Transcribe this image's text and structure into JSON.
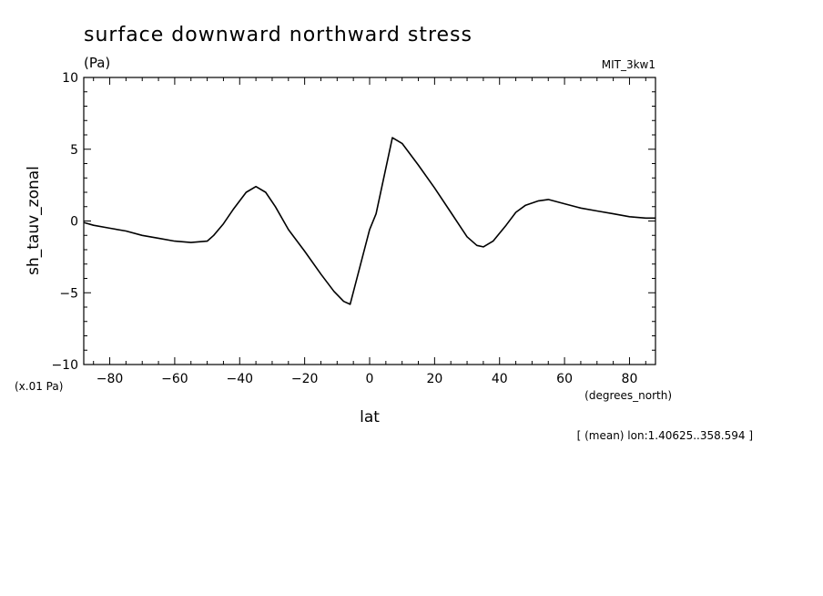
{
  "chart_data": {
    "type": "line",
    "title": "surface downward northward stress",
    "units": "(Pa)",
    "model": "MIT_3kw1",
    "scale_note": "(x.01 Pa)",
    "xlabel": "lat",
    "xunits": "(degrees_north)",
    "ylabel": "sh_tauv_zonal",
    "footnote": "[ (mean) lon:1.40625..358.594 ]",
    "xlim": [
      -88,
      88
    ],
    "ylim": [
      -10,
      10
    ],
    "x_ticks": [
      -80,
      -60,
      -40,
      -20,
      0,
      20,
      40,
      60,
      80
    ],
    "y_ticks": [
      -10,
      -5,
      0,
      5,
      10
    ],
    "x_tick_labels": [
      "−80",
      "−60",
      "−40",
      "−20",
      "0",
      "20",
      "40",
      "60",
      "80"
    ],
    "y_tick_labels": [
      "−10",
      "−5",
      "0",
      "5",
      "10"
    ],
    "grid": false,
    "series": [
      {
        "color": "#000000",
        "x": [
          -88,
          -85,
          -80,
          -75,
          -70,
          -65,
          -60,
          -55,
          -50,
          -48,
          -45,
          -42,
          -38,
          -35,
          -32,
          -29,
          -25,
          -20,
          -15,
          -11,
          -8,
          -6,
          -3,
          0,
          2,
          7,
          10,
          15,
          20,
          25,
          30,
          33,
          35,
          38,
          42,
          45,
          48,
          52,
          55,
          60,
          65,
          70,
          75,
          80,
          85,
          88
        ],
        "values": [
          -0.1,
          -0.3,
          -0.5,
          -0.7,
          -1.0,
          -1.2,
          -1.4,
          -1.5,
          -1.4,
          -1.0,
          -0.2,
          0.8,
          2.0,
          2.4,
          2.0,
          1.0,
          -0.6,
          -2.1,
          -3.7,
          -4.9,
          -5.6,
          -5.8,
          -3.2,
          -0.6,
          0.5,
          5.8,
          5.4,
          3.9,
          2.3,
          0.6,
          -1.1,
          -1.7,
          -1.8,
          -1.4,
          -0.3,
          0.6,
          1.1,
          1.4,
          1.5,
          1.2,
          0.9,
          0.7,
          0.5,
          0.3,
          0.2,
          0.2
        ]
      }
    ]
  }
}
